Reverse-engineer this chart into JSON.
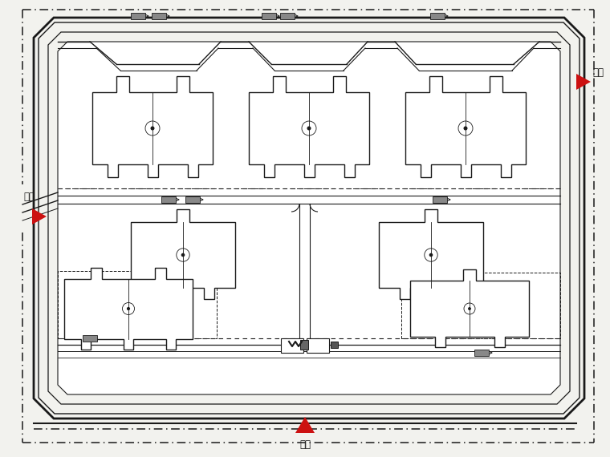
{
  "bg_color": "#f2f2ee",
  "line_color": "#1a1a1a",
  "white": "#ffffff",
  "red": "#cc1111",
  "figsize": [
    7.6,
    5.7
  ],
  "dpi": 100,
  "xlim": [
    0,
    760
  ],
  "ylim": [
    0,
    570
  ],
  "gate_text": "大门",
  "gate_fontsize": 8.5
}
